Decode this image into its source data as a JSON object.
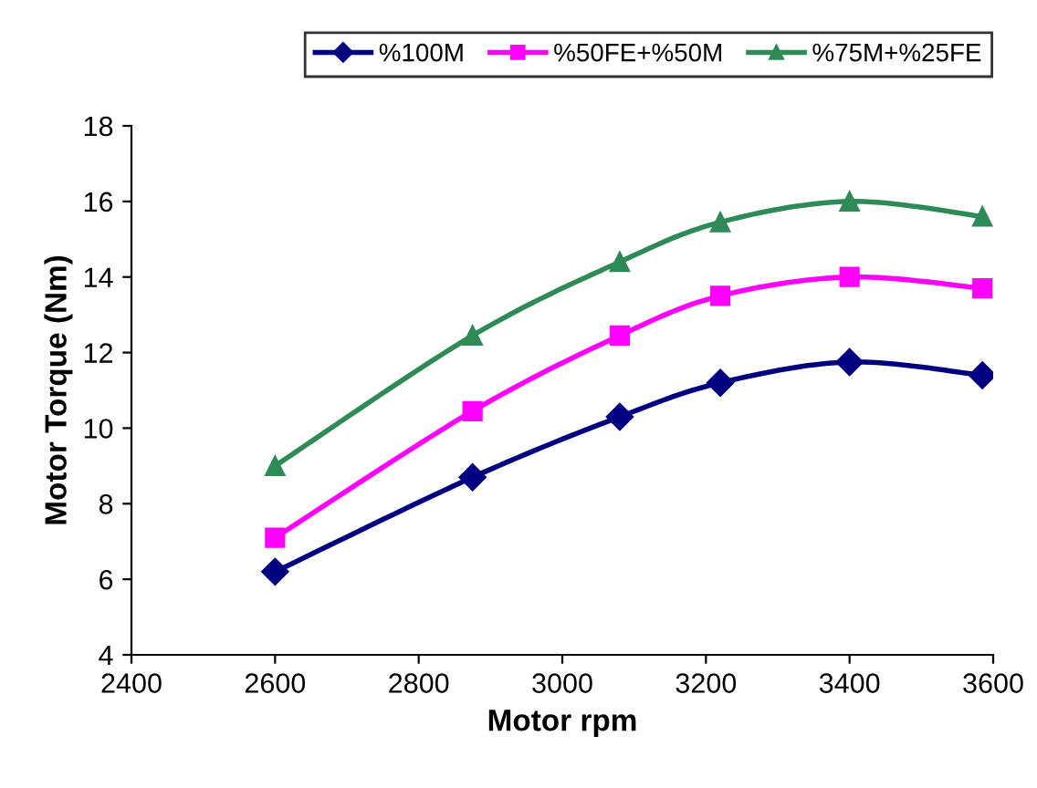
{
  "chart_data": {
    "type": "line",
    "xlabel": "Motor rpm",
    "ylabel": "Motor Torque (Nm)",
    "x": [
      2600,
      2875,
      3080,
      3220,
      3400,
      3585
    ],
    "series": [
      {
        "name": "%100M",
        "color": "#000080",
        "marker": "diamond",
        "values": [
          6.2,
          8.7,
          10.3,
          11.2,
          11.75,
          11.4
        ]
      },
      {
        "name": "%50FE+%50M",
        "color": "#ff00ff",
        "marker": "square",
        "values": [
          7.1,
          10.45,
          12.45,
          13.5,
          14.0,
          13.7
        ]
      },
      {
        "name": "%75M+%25FE",
        "color": "#2e8b57",
        "marker": "triangle",
        "values": [
          9.0,
          12.45,
          14.4,
          15.45,
          16.0,
          15.6
        ]
      }
    ],
    "xlim": [
      2400,
      3600
    ],
    "xticks": [
      2400,
      2600,
      2800,
      3000,
      3200,
      3400,
      3600
    ],
    "ylim": [
      4,
      18
    ],
    "yticks": [
      4,
      6,
      8,
      10,
      12,
      14,
      16,
      18
    ],
    "grid": false,
    "legend": "top",
    "line_style": "solid"
  }
}
